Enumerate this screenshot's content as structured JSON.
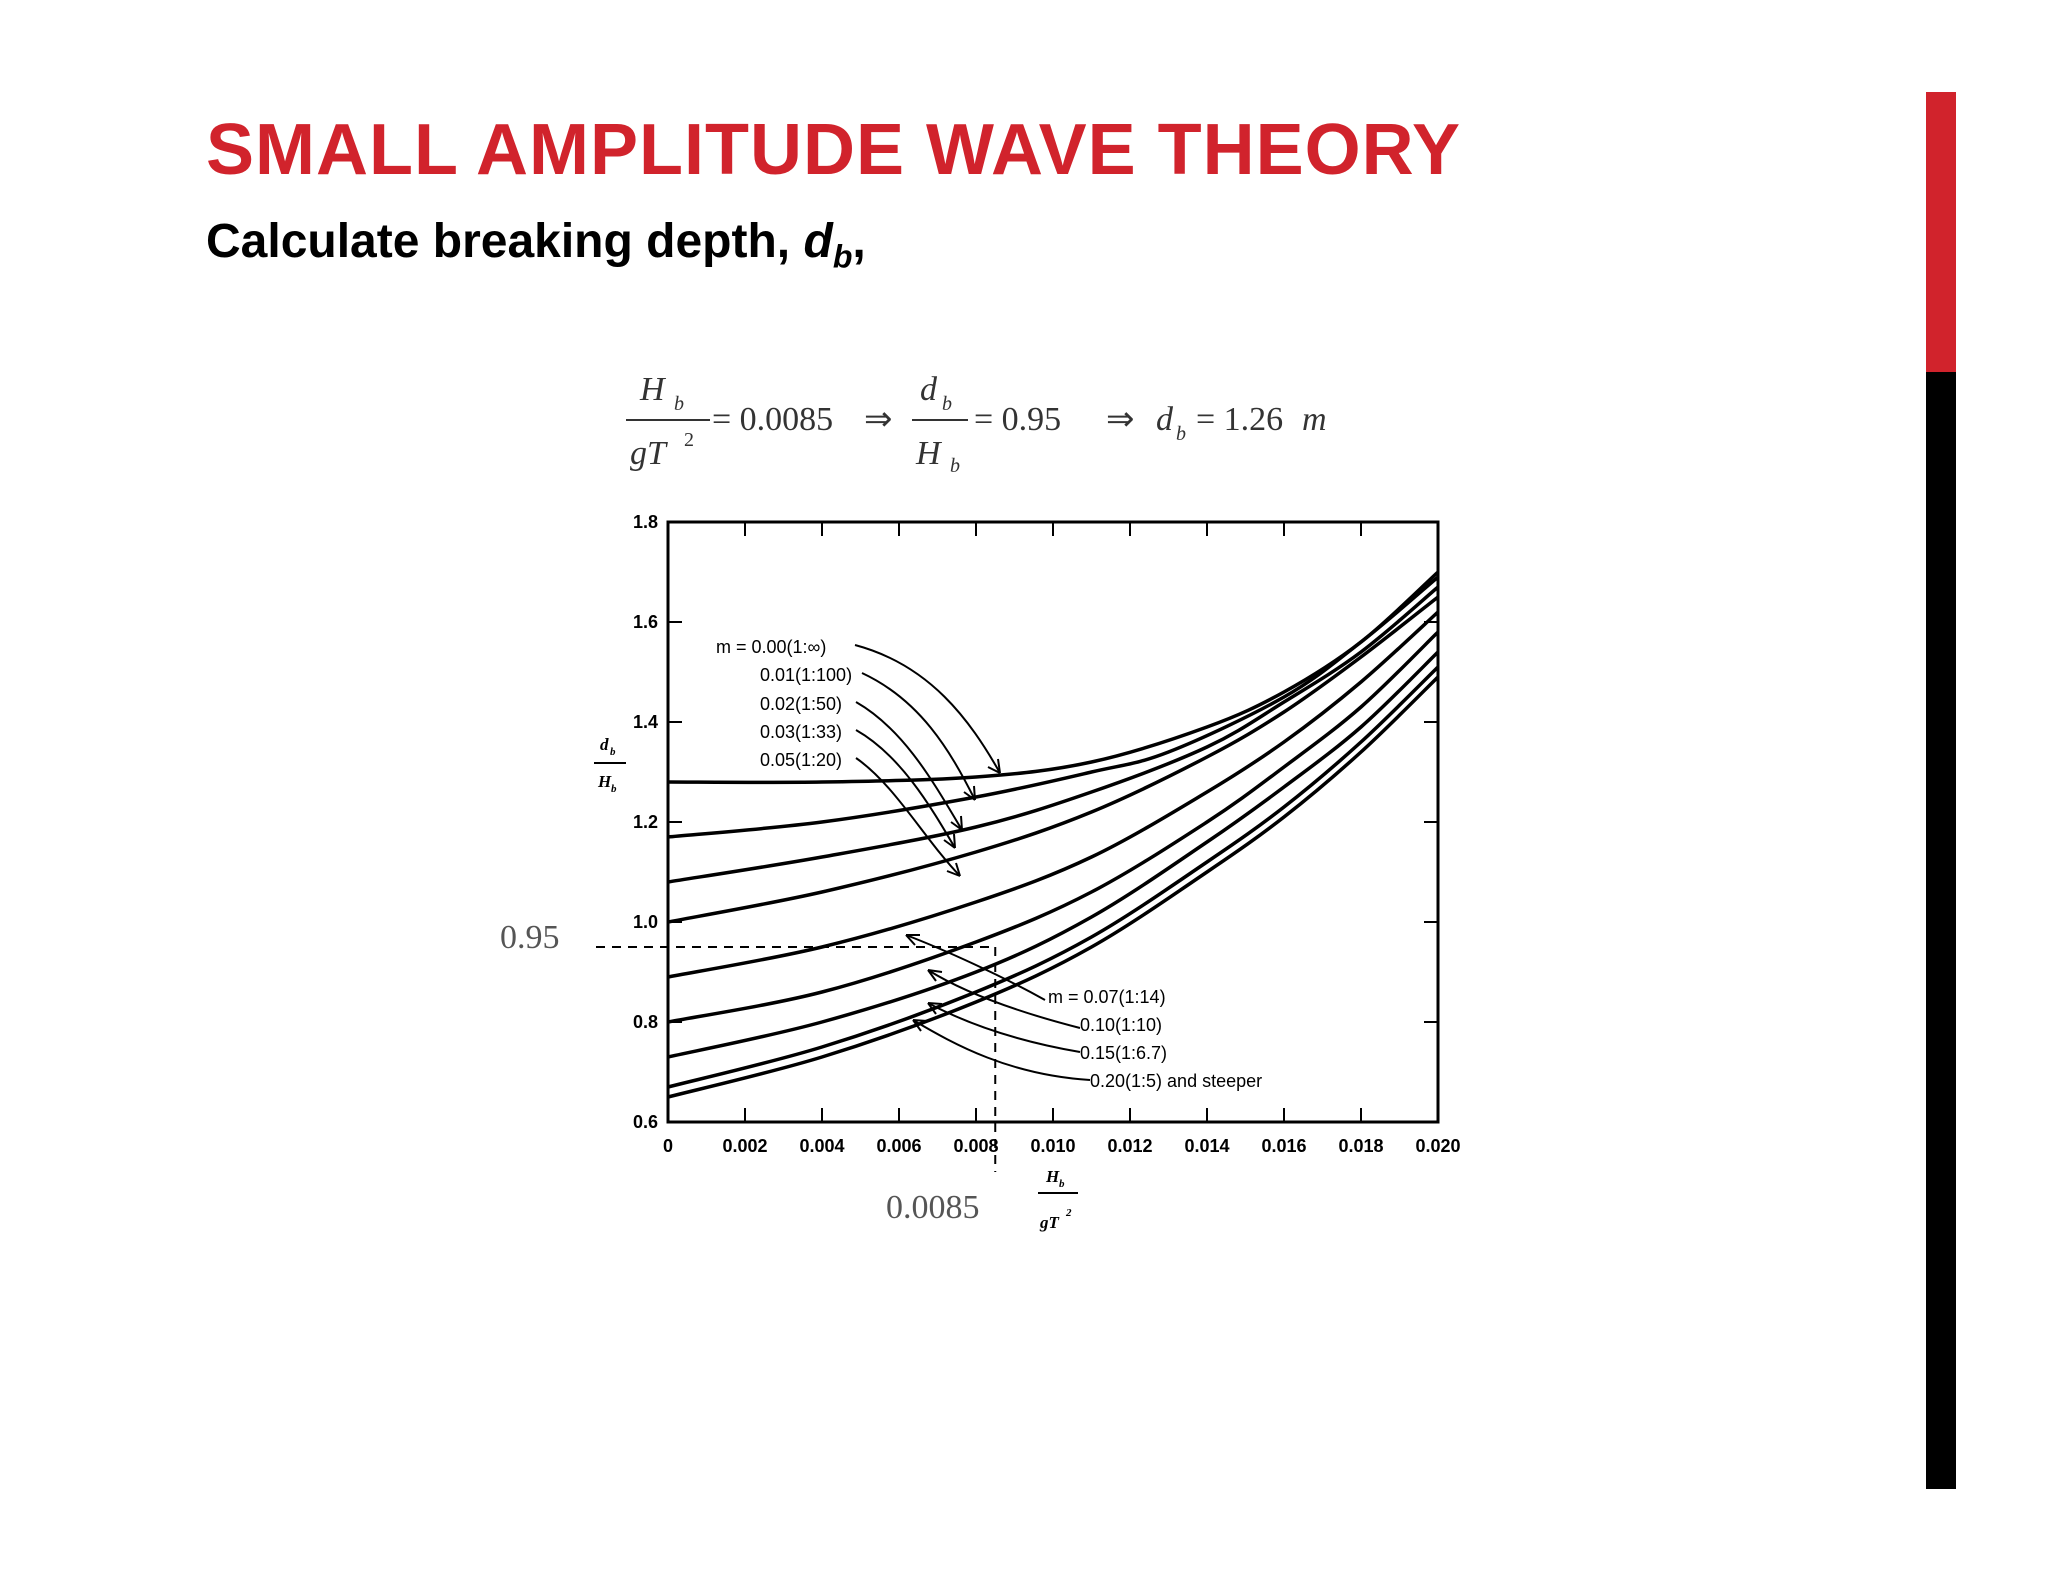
{
  "slide": {
    "title": "SMALL AMPLITUDE WAVE THEORY",
    "subtitle_text": "Calculate breaking depth,",
    "subtitle_var": "d",
    "subtitle_sub": "b",
    "subtitle_end": ","
  },
  "equation": {
    "frac1_num": "H",
    "frac1_num_sub": "b",
    "frac1_den": "gT",
    "frac1_den_sup": "2",
    "eq1": "= 0.0085",
    "frac2_num": "d",
    "frac2_num_sub": "b",
    "frac2_den": "H",
    "frac2_den_sub": "b",
    "eq2": "= 0.95",
    "result_var": "d",
    "result_sub": "b",
    "result_eq": "= 1.26",
    "result_unit": "m"
  },
  "annotations": {
    "y_marker": "0.95",
    "x_marker": "0.0085"
  },
  "colors": {
    "accent_red": "#d1232c",
    "black": "#000000"
  },
  "chart_data": {
    "type": "line",
    "xlabel_num": "H",
    "xlabel_num_sub": "b",
    "xlabel_den": "gT",
    "xlabel_den_sup": "2",
    "ylabel_num": "d",
    "ylabel_num_sub": "b",
    "ylabel_den": "H",
    "ylabel_den_sub": "b",
    "xlim": [
      0,
      0.02
    ],
    "ylim": [
      0.6,
      1.8
    ],
    "x_ticks": [
      0,
      0.002,
      0.004,
      0.006,
      0.008,
      0.01,
      0.012,
      0.014,
      0.016,
      0.018,
      0.02
    ],
    "x_tick_labels": [
      "0",
      "0.002",
      "0.004",
      "0.006",
      "0.008",
      "0.010",
      "0.012",
      "0.014",
      "0.016",
      "0.018",
      "0.020"
    ],
    "y_ticks": [
      0.6,
      0.8,
      1.0,
      1.2,
      1.4,
      1.6,
      1.8
    ],
    "y_tick_labels": [
      "0.6",
      "0.8",
      "1.0",
      "1.2",
      "1.4",
      "1.6",
      "1.8"
    ],
    "legend_upper": [
      "m = 0.00(1:∞)",
      "0.01(1:100)",
      "0.02(1:50)",
      "0.03(1:33)",
      "0.05(1:20)"
    ],
    "legend_lower": [
      "m = 0.07(1:14)",
      "0.10(1:10)",
      "0.15(1:6.7)",
      "0.20(1:5) and steeper"
    ],
    "series": [
      {
        "x": [
          0,
          0.004,
          0.008,
          0.011,
          0.014,
          0.016,
          0.018,
          0.02
        ],
        "y": [
          1.28,
          1.28,
          1.29,
          1.32,
          1.39,
          1.46,
          1.56,
          1.7
        ]
      },
      {
        "x": [
          0,
          0.004,
          0.008,
          0.011,
          0.013,
          0.016,
          0.018,
          0.02
        ],
        "y": [
          1.17,
          1.2,
          1.25,
          1.3,
          1.34,
          1.45,
          1.56,
          1.69
        ]
      },
      {
        "x": [
          0,
          0.004,
          0.008,
          0.011,
          0.014,
          0.016,
          0.018,
          0.02
        ],
        "y": [
          1.08,
          1.13,
          1.19,
          1.26,
          1.35,
          1.44,
          1.54,
          1.67
        ]
      },
      {
        "x": [
          0,
          0.004,
          0.008,
          0.011,
          0.014,
          0.016,
          0.018,
          0.02
        ],
        "y": [
          1.0,
          1.06,
          1.14,
          1.22,
          1.33,
          1.42,
          1.53,
          1.65
        ]
      },
      {
        "x": [
          0,
          0.004,
          0.008,
          0.011,
          0.014,
          0.016,
          0.018,
          0.02
        ],
        "y": [
          0.89,
          0.95,
          1.04,
          1.13,
          1.26,
          1.36,
          1.48,
          1.62
        ]
      },
      {
        "x": [
          0,
          0.004,
          0.008,
          0.011,
          0.014,
          0.016,
          0.018,
          0.02
        ],
        "y": [
          0.8,
          0.86,
          0.96,
          1.06,
          1.2,
          1.31,
          1.43,
          1.58
        ]
      },
      {
        "x": [
          0,
          0.004,
          0.008,
          0.011,
          0.014,
          0.016,
          0.018,
          0.02
        ],
        "y": [
          0.73,
          0.8,
          0.9,
          1.01,
          1.16,
          1.27,
          1.39,
          1.54
        ]
      },
      {
        "x": [
          0,
          0.004,
          0.008,
          0.011,
          0.014,
          0.016,
          0.018,
          0.02
        ],
        "y": [
          0.67,
          0.75,
          0.86,
          0.97,
          1.12,
          1.23,
          1.36,
          1.51
        ]
      },
      {
        "x": [
          0,
          0.004,
          0.008,
          0.011,
          0.014,
          0.016,
          0.018,
          0.02
        ],
        "y": [
          0.65,
          0.73,
          0.84,
          0.95,
          1.1,
          1.21,
          1.34,
          1.49
        ]
      }
    ],
    "reference_lines": {
      "x": 0.0085,
      "y": 0.95
    }
  }
}
